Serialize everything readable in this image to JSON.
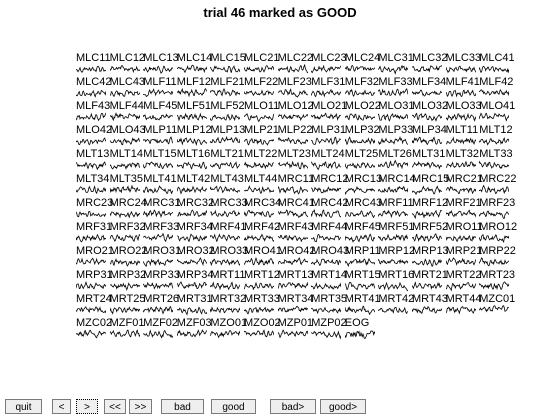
{
  "title": "trial 46 marked as GOOD",
  "channels": [
    [
      "MLC11",
      "MLC12",
      "MLC13",
      "MLC14",
      "MLC15",
      "MLC21",
      "MLC22",
      "MLC23",
      "MLC24",
      "MLC31",
      "MLC32",
      "MLC33",
      "MLC41"
    ],
    [
      "MLC42",
      "MLC43",
      "MLF11",
      "MLF12",
      "MLF21",
      "MLF22",
      "MLF23",
      "MLF31",
      "MLF32",
      "MLF33",
      "MLF34",
      "MLF41",
      "MLF42"
    ],
    [
      "MLF43",
      "MLF44",
      "MLF45",
      "MLF51",
      "MLF52",
      "MLO11",
      "MLO12",
      "MLO21",
      "MLO22",
      "MLO31",
      "MLO32",
      "MLO33",
      "MLO41"
    ],
    [
      "MLO42",
      "MLO43",
      "MLP11",
      "MLP12",
      "MLP13",
      "MLP21",
      "MLP22",
      "MLP31",
      "MLP32",
      "MLP33",
      "MLP34",
      "MLT11",
      "MLT12"
    ],
    [
      "MLT13",
      "MLT14",
      "MLT15",
      "MLT16",
      "MLT21",
      "MLT22",
      "MLT23",
      "MLT24",
      "MLT25",
      "MLT26",
      "MLT31",
      "MLT32",
      "MLT33"
    ],
    [
      "MLT34",
      "MLT35",
      "MLT41",
      "MLT42",
      "MLT43",
      "MLT44",
      "MRC11",
      "MRC12",
      "MRC13",
      "MRC14",
      "MRC15",
      "MRC21",
      "MRC22"
    ],
    [
      "MRC23",
      "MRC24",
      "MRC31",
      "MRC32",
      "MRC33",
      "MRC34",
      "MRC41",
      "MRC42",
      "MRC43",
      "MRF11",
      "MRF12",
      "MRF21",
      "MRF23"
    ],
    [
      "MRF31",
      "MRF32",
      "MRF33",
      "MRF34",
      "MRF41",
      "MRF42",
      "MRF43",
      "MRF44",
      "MRF45",
      "MRF51",
      "MRF52",
      "MRO11",
      "MRO12"
    ],
    [
      "MRO21",
      "MRO22",
      "MRO31",
      "MRO32",
      "MRO33",
      "MRO41",
      "MRO42",
      "MRO43",
      "MRP11",
      "MRP12",
      "MRP13",
      "MRP21",
      "MRP22"
    ],
    [
      "MRP31",
      "MRP32",
      "MRP33",
      "MRP34",
      "MRT11",
      "MRT12",
      "MRT13",
      "MRT14",
      "MRT15",
      "MRT16",
      "MRT21",
      "MRT22",
      "MRT23"
    ],
    [
      "MRT24",
      "MRT25",
      "MRT26",
      "MRT31",
      "MRT32",
      "MRT33",
      "MRT34",
      "MRT35",
      "MRT41",
      "MRT42",
      "MRT43",
      "MRT44",
      "MZC01"
    ],
    [
      "MZC02",
      "MZF01",
      "MZF02",
      "MZF03",
      "MZO01",
      "MZO02",
      "MZP01",
      "MZP02",
      "EOG"
    ]
  ],
  "buttons": {
    "quit": "quit",
    "prev": "<",
    "next": ">",
    "prev_fast": "<<",
    "next_fast": ">>",
    "bad": "bad",
    "good": "good",
    "bad_next": "bad>",
    "good_next": "good>"
  }
}
